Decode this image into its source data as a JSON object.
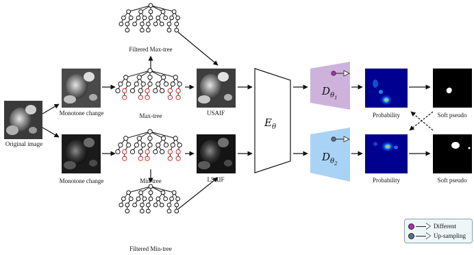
{
  "labels": {
    "original_image": "Original image",
    "monotone_change_top": "Monotone change",
    "monotone_change_bottom": "Monotone change",
    "max_tree": "Max-tree",
    "min_tree": "Min-tree",
    "filtered_max_tree": "Filtered Max-tree",
    "filtered_min_tree": "Filtered Min-tree",
    "usaif": "USAIF",
    "lsaif": "LSAIF",
    "encoder": "E",
    "encoder_sub": "θ",
    "decoder_top": "D",
    "decoder_top_sub": "θ",
    "decoder_top_subsub": "1",
    "decoder_bottom": "D",
    "decoder_bottom_sub": "θ",
    "decoder_bottom_subsub": "2",
    "probability_top": "Probability",
    "probability_bottom": "Probability",
    "soft_pseudo_top": "Soft pseudo",
    "soft_pseudo_bottom": "Soft pseudo"
  },
  "legend": {
    "different": "Different",
    "upsampling": "Up-sampling"
  },
  "colors": {
    "decoder_top": "#cdb3dc",
    "decoder_bottom": "#a9d3f4",
    "dot_top": "#b02fb0",
    "dot_bottom": "#5a6e93",
    "pruned_node": "#d62020"
  }
}
